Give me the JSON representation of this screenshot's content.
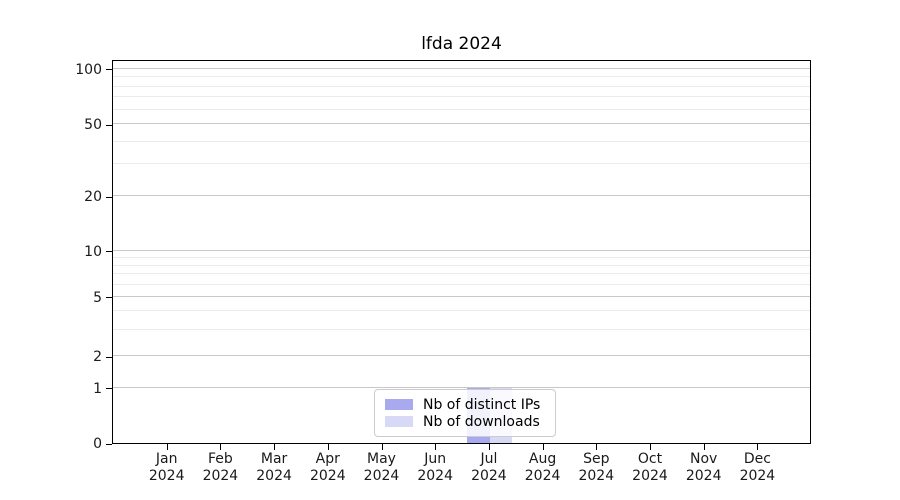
{
  "chart_data": {
    "type": "bar",
    "title": "lfda 2024",
    "categories": [
      "Jan 2024",
      "Feb 2024",
      "Mar 2024",
      "Apr 2024",
      "May 2024",
      "Jun 2024",
      "Jul 2024",
      "Aug 2024",
      "Sep 2024",
      "Oct 2024",
      "Nov 2024",
      "Dec 2024"
    ],
    "series": [
      {
        "name": "Nb of distinct IPs",
        "color": "#a9a9f0",
        "values": [
          0,
          0,
          0,
          0,
          0,
          0,
          1,
          0,
          0,
          0,
          0,
          0
        ]
      },
      {
        "name": "Nb of downloads",
        "color": "#d8d8f7",
        "values": [
          0,
          0,
          0,
          0,
          0,
          0,
          1,
          0,
          0,
          0,
          0,
          0
        ]
      }
    ],
    "xlabel": "",
    "ylabel": "",
    "yscale": "symlog",
    "ylim": [
      0,
      113
    ],
    "grid": {
      "enabled": true,
      "major_color": "#c8c8c8",
      "minor_color": "#ebebeb"
    },
    "legend": {
      "position": "lower center"
    },
    "y_axis": {
      "ticks": [
        {
          "v": 0,
          "label": "0",
          "f": 0.0
        },
        {
          "v": 1,
          "label": "1",
          "f": 0.1436
        },
        {
          "v": 2,
          "label": "2",
          "f": 0.2261
        },
        {
          "v": 5,
          "label": "5",
          "f": 0.3812
        },
        {
          "v": 10,
          "label": "10",
          "f": 0.5003
        },
        {
          "v": 20,
          "label": "20",
          "f": 0.6423
        },
        {
          "v": 50,
          "label": "50",
          "f": 0.8303
        },
        {
          "v": 100,
          "label": "100",
          "f": 0.9747
        }
      ],
      "minor_ticks": [
        {
          "v": 3,
          "f": 0.2947
        },
        {
          "v": 4,
          "f": 0.3434
        },
        {
          "v": 6,
          "f": 0.4125
        },
        {
          "v": 7,
          "f": 0.439
        },
        {
          "v": 8,
          "f": 0.462
        },
        {
          "v": 9,
          "f": 0.4822
        },
        {
          "v": 30,
          "f": 0.7255
        },
        {
          "v": 40,
          "f": 0.7845
        },
        {
          "v": 60,
          "f": 0.8683
        },
        {
          "v": 70,
          "f": 0.9004
        },
        {
          "v": 80,
          "f": 0.9282
        },
        {
          "v": 90,
          "f": 0.9527
        }
      ]
    }
  }
}
